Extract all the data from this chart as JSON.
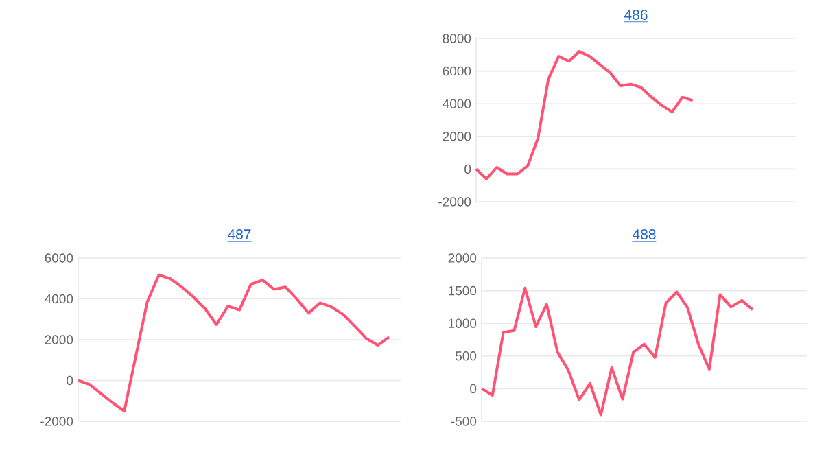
{
  "chart_data": [
    {
      "type": "line",
      "title": "486",
      "categories": [
        null,
        null,
        null,
        null,
        null,
        null,
        null,
        null,
        null,
        null,
        null,
        null,
        null,
        null,
        null,
        null,
        null,
        null,
        null,
        null,
        null,
        null,
        null,
        null,
        null,
        null,
        null,
        null,
        null,
        null,
        null,
        null
      ],
      "values": [
        0,
        -600,
        100,
        -300,
        -300,
        200,
        1900,
        5500,
        6900,
        6600,
        7200,
        6900,
        6400,
        5900,
        5100,
        5200,
        5000,
        4400,
        3900,
        3500,
        4400,
        4200,
        null,
        null,
        null,
        null,
        null,
        null,
        null,
        null,
        null,
        null
      ],
      "color": "#ff5274",
      "ylim": [
        -2000,
        8000
      ],
      "yticks": [
        -2000,
        0,
        2000,
        4000,
        6000,
        8000
      ],
      "grid": "y",
      "tick_labels": "y"
    },
    {
      "type": "line",
      "title": "487",
      "categories": [
        null,
        null,
        null,
        null,
        null,
        null,
        null,
        null,
        null,
        null,
        null,
        null,
        null,
        null,
        null,
        null,
        null,
        null,
        null,
        null,
        null,
        null,
        null,
        null,
        null,
        null,
        null,
        null,
        null
      ],
      "values": [
        0,
        -200,
        -650,
        -1100,
        -1500,
        1200,
        3860,
        5170,
        4990,
        4580,
        4090,
        3530,
        2740,
        3640,
        3460,
        4720,
        4920,
        4470,
        4580,
        3980,
        3300,
        3800,
        3600,
        3240,
        2670,
        2070,
        1730,
        2130,
        null
      ],
      "color": "#ff5274",
      "ylim": [
        -2000,
        6000
      ],
      "yticks": [
        -2000,
        0,
        2000,
        4000,
        6000
      ],
      "grid": "y",
      "tick_labels": "y"
    },
    {
      "type": "line",
      "title": "488",
      "categories": [
        null,
        null,
        null,
        null,
        null,
        null,
        null,
        null,
        null,
        null,
        null,
        null,
        null,
        null,
        null,
        null,
        null,
        null,
        null,
        null,
        null,
        null,
        null,
        null,
        null,
        null,
        null,
        null,
        null,
        null,
        null
      ],
      "values": [
        0,
        -100,
        860,
        890,
        1540,
        950,
        1290,
        560,
        280,
        -170,
        80,
        -400,
        320,
        -160,
        560,
        680,
        480,
        1310,
        1480,
        1240,
        680,
        300,
        1440,
        1250,
        1350,
        1210,
        null,
        null,
        null,
        null,
        null
      ],
      "color": "#ff5274",
      "ylim": [
        -500,
        2000
      ],
      "yticks": [
        -500,
        0,
        500,
        1000,
        1500,
        2000
      ],
      "grid": "y",
      "tick_labels": "y"
    }
  ]
}
